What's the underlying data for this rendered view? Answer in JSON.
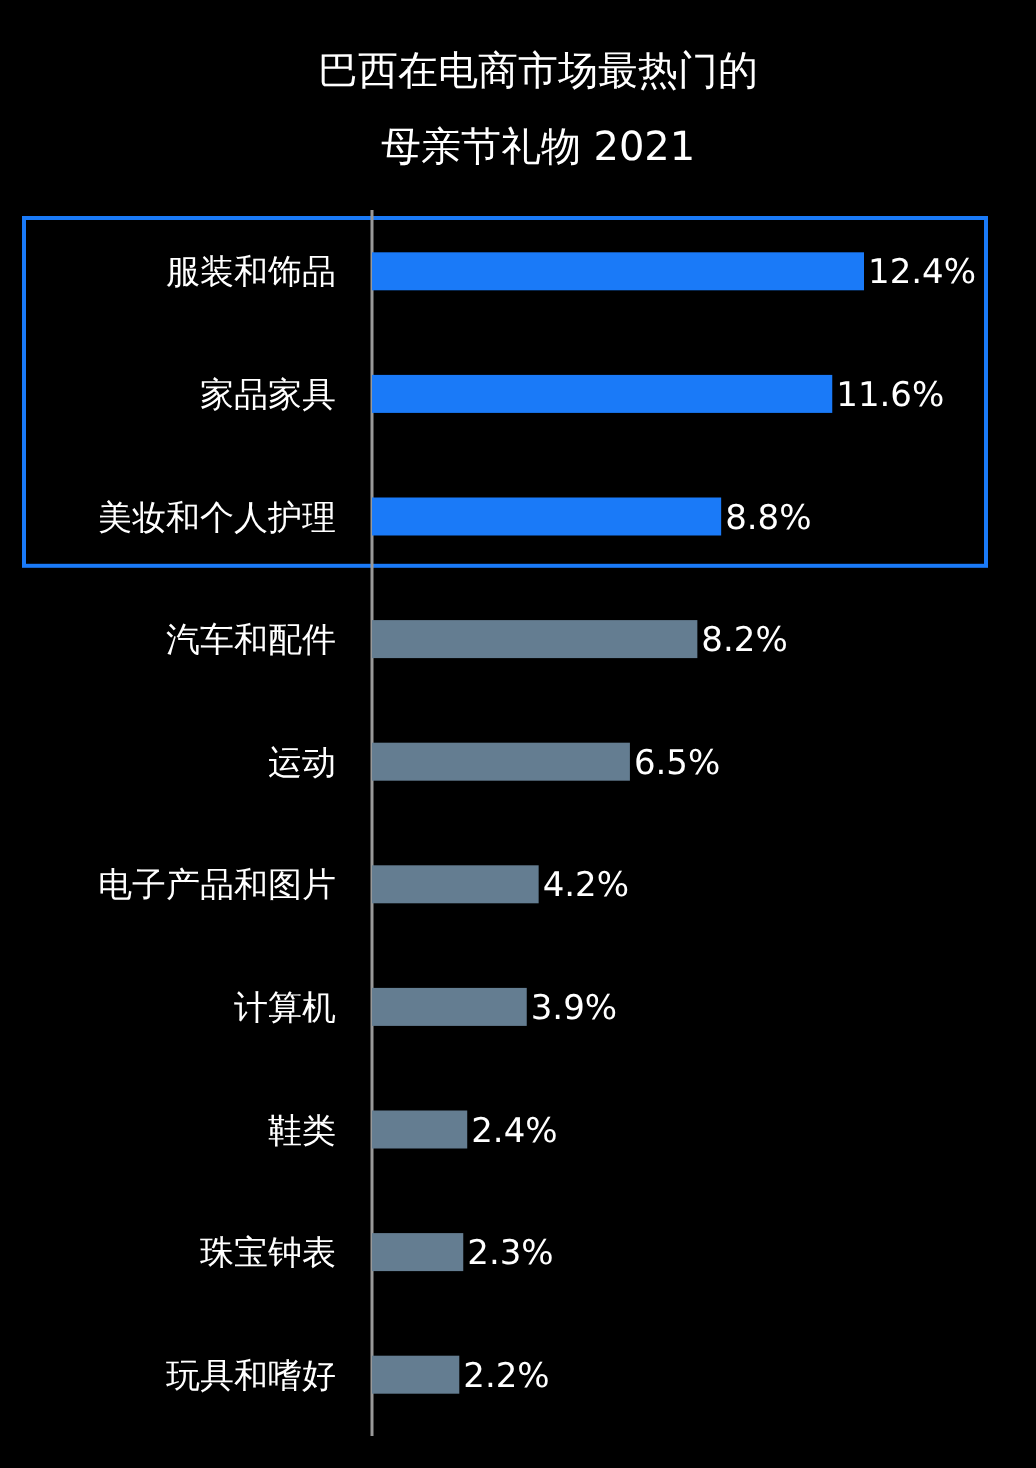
{
  "chart_data": {
    "type": "bar",
    "orientation": "horizontal",
    "title": "巴西在电商市场最热门的",
    "subtitle": "母亲节礼物 2021",
    "categories": [
      "服装和饰品",
      "家品家具",
      "美妆和个人护理",
      "汽车和配件",
      "运动",
      "电子产品和图片",
      "计算机",
      "鞋类",
      "珠宝钟表",
      "玩具和嗜好"
    ],
    "values": [
      12.4,
      11.6,
      8.8,
      8.2,
      6.5,
      4.2,
      3.9,
      2.4,
      2.3,
      2.2
    ],
    "colors": [
      "#1a7af8",
      "#1a7af8",
      "#1a7af8",
      "#647d91",
      "#647d91",
      "#647d91",
      "#647d91",
      "#647d91",
      "#647d91",
      "#647d91"
    ],
    "value_labels": [
      "12.4%",
      "11.6%",
      "8.8%",
      "8.2%",
      "6.5%",
      "4.2%",
      "3.9%",
      "2.4%",
      "2.3%",
      "2.2%"
    ]
  }
}
